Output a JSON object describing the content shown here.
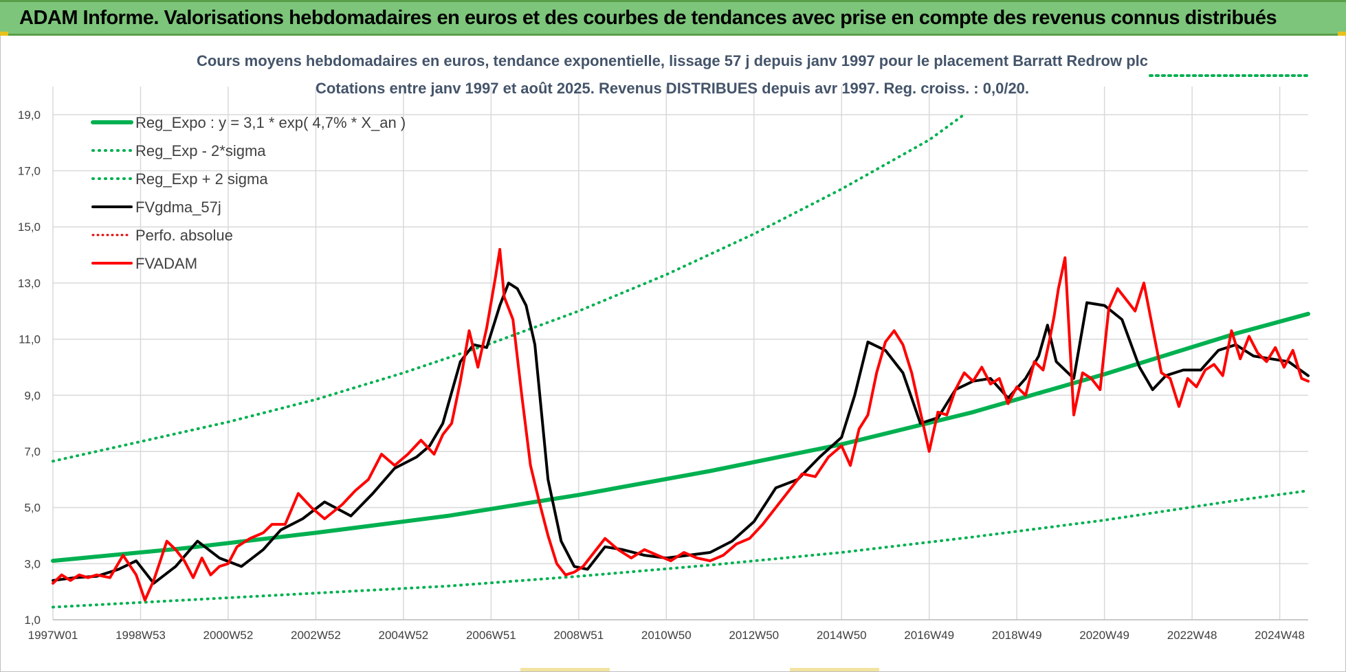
{
  "header": {
    "title": "ADAM Informe. Valorisations hebdomadaires en euros et des courbes de tendances avec prise en compte des revenus connus distribués",
    "background": "#7cc57a"
  },
  "chart_data": {
    "type": "line",
    "title": "Cours moyens hebdomadaires en euros, tendance exponentielle, lissage 57 j depuis janv 1997 pour le placement Barratt Redrow plc",
    "subtitle": "Cotations entre janv 1997 et août 2025. Revenus DISTRIBUES depuis avr 1997. Reg. croiss. : 0,0/20.",
    "xlabel": "",
    "ylabel": "",
    "x_unit": "year (decimal)",
    "xlim": [
      1997.0,
      2025.65
    ],
    "ylim": [
      1.0,
      20.0
    ],
    "grid": true,
    "legend_position": "top-left",
    "x_ticks": [
      {
        "x": 1997.0,
        "label": "1997W01"
      },
      {
        "x": 1999.0,
        "label": "1998W53"
      },
      {
        "x": 2001.0,
        "label": "2000W52"
      },
      {
        "x": 2003.0,
        "label": "2002W52"
      },
      {
        "x": 2005.0,
        "label": "2004W52"
      },
      {
        "x": 2007.0,
        "label": "2006W51"
      },
      {
        "x": 2009.0,
        "label": "2008W51"
      },
      {
        "x": 2011.0,
        "label": "2010W50"
      },
      {
        "x": 2013.0,
        "label": "2012W50"
      },
      {
        "x": 2015.0,
        "label": "2014W50"
      },
      {
        "x": 2017.0,
        "label": "2016W49"
      },
      {
        "x": 2019.0,
        "label": "2018W49"
      },
      {
        "x": 2021.0,
        "label": "2020W49"
      },
      {
        "x": 2023.0,
        "label": "2022W48"
      },
      {
        "x": 2025.0,
        "label": "2024W48"
      }
    ],
    "y_ticks": [
      {
        "y": 1,
        "label": "1,0"
      },
      {
        "y": 3,
        "label": "3,0"
      },
      {
        "y": 5,
        "label": "5,0"
      },
      {
        "y": 7,
        "label": "7,0"
      },
      {
        "y": 9,
        "label": "9,0"
      },
      {
        "y": 11,
        "label": "11,0"
      },
      {
        "y": 13,
        "label": "13,0"
      },
      {
        "y": 15,
        "label": "15,0"
      },
      {
        "y": 17,
        "label": "17,0"
      },
      {
        "y": 19,
        "label": "19,0"
      }
    ],
    "series": [
      {
        "name": "Reg_Expo : y = 3,1 * exp( 4,7% *  X_an )",
        "color": "#00b050",
        "style": "solid",
        "width": 6,
        "x": [
          1997.0,
          2000.0,
          2003.0,
          2006.0,
          2009.0,
          2012.0,
          2015.0,
          2018.0,
          2021.0,
          2024.0,
          2025.65
        ],
        "y": [
          3.1,
          3.55,
          4.1,
          4.7,
          5.45,
          6.3,
          7.25,
          8.4,
          9.75,
          11.2,
          11.9
        ]
      },
      {
        "name": "Reg_Exp - 2*sigma",
        "color": "#00b050",
        "style": "dotted",
        "width": 4,
        "x": [
          1997.0,
          2000.0,
          2003.0,
          2006.0,
          2009.0,
          2012.0,
          2015.0,
          2018.0,
          2021.0,
          2024.0,
          2025.65
        ],
        "y": [
          1.45,
          1.7,
          1.95,
          2.2,
          2.55,
          2.95,
          3.4,
          3.95,
          4.55,
          5.25,
          5.6
        ]
      },
      {
        "name": "Reg_Exp + 2 sigma",
        "color": "#00b050",
        "style": "dotted",
        "width": 4,
        "x": [
          1997.0,
          1999.0,
          2001.0,
          2003.0,
          2005.0,
          2007.0,
          2009.0,
          2011.0,
          2013.0,
          2015.0,
          2017.0,
          2017.75
        ],
        "y": [
          6.65,
          7.35,
          8.05,
          8.85,
          9.8,
          10.85,
          12.0,
          13.3,
          14.75,
          16.35,
          18.1,
          18.95
        ]
      },
      {
        "name": "FVgdma_57j",
        "color": "#000000",
        "style": "solid",
        "width": 4,
        "x": [
          1997.0,
          1997.5,
          1998.0,
          1998.5,
          1998.9,
          1999.3,
          1999.8,
          2000.3,
          2000.8,
          2001.3,
          2001.8,
          2002.2,
          2002.7,
          2003.2,
          2003.8,
          2004.3,
          2004.8,
          2005.3,
          2005.6,
          2005.9,
          2006.3,
          2006.6,
          2006.9,
          2007.2,
          2007.4,
          2007.6,
          2007.8,
          2008.0,
          2008.3,
          2008.6,
          2008.9,
          2009.2,
          2009.6,
          2010.0,
          2010.5,
          2011.0,
          2011.5,
          2012.0,
          2012.5,
          2013.0,
          2013.5,
          2014.0,
          2014.5,
          2015.0,
          2015.3,
          2015.6,
          2016.0,
          2016.4,
          2016.8,
          2017.2,
          2017.6,
          2018.0,
          2018.4,
          2018.8,
          2019.2,
          2019.5,
          2019.7,
          2019.9,
          2020.3,
          2020.6,
          2021.0,
          2021.4,
          2021.8,
          2022.1,
          2022.4,
          2022.8,
          2023.2,
          2023.6,
          2024.0,
          2024.4,
          2024.8,
          2025.2,
          2025.65
        ],
        "y": [
          2.4,
          2.5,
          2.55,
          2.8,
          3.1,
          2.3,
          2.9,
          3.8,
          3.2,
          2.9,
          3.5,
          4.2,
          4.6,
          5.2,
          4.7,
          5.5,
          6.4,
          6.8,
          7.2,
          8.0,
          10.2,
          10.8,
          10.7,
          12.2,
          13.0,
          12.8,
          12.2,
          10.8,
          6.0,
          3.8,
          2.9,
          2.8,
          3.6,
          3.5,
          3.3,
          3.2,
          3.3,
          3.4,
          3.8,
          4.5,
          5.7,
          6.0,
          6.8,
          7.5,
          9.0,
          10.9,
          10.6,
          9.8,
          8.0,
          8.2,
          9.2,
          9.5,
          9.6,
          8.9,
          9.6,
          10.4,
          11.5,
          10.2,
          9.6,
          12.3,
          12.2,
          11.7,
          10.0,
          9.2,
          9.7,
          9.9,
          9.9,
          10.6,
          10.8,
          10.4,
          10.3,
          10.2,
          9.7
        ]
      },
      {
        "name": "Perfo. absolue",
        "color": "#e00000",
        "style": "dotted",
        "width": 3,
        "x": [],
        "y": []
      },
      {
        "name": "FVADAM",
        "color": "#ff0000",
        "style": "solid",
        "width": 4,
        "x": [
          1997.0,
          1997.2,
          1997.4,
          1997.6,
          1997.8,
          1998.0,
          1998.3,
          1998.6,
          1998.9,
          1999.1,
          1999.3,
          1999.6,
          1999.8,
          2000.0,
          2000.2,
          2000.4,
          2000.6,
          2000.8,
          2001.0,
          2001.2,
          2001.5,
          2001.8,
          2002.0,
          2002.3,
          2002.6,
          2002.9,
          2003.2,
          2003.6,
          2003.9,
          2004.2,
          2004.5,
          2004.8,
          2005.1,
          2005.4,
          2005.7,
          2005.9,
          2006.1,
          2006.3,
          2006.5,
          2006.7,
          2006.9,
          2007.1,
          2007.2,
          2007.3,
          2007.5,
          2007.7,
          2007.9,
          2008.1,
          2008.3,
          2008.5,
          2008.7,
          2008.9,
          2009.1,
          2009.3,
          2009.6,
          2009.9,
          2010.2,
          2010.5,
          2010.8,
          2011.1,
          2011.4,
          2011.7,
          2012.0,
          2012.3,
          2012.6,
          2012.9,
          2013.2,
          2013.5,
          2013.8,
          2014.1,
          2014.4,
          2014.7,
          2015.0,
          2015.2,
          2015.4,
          2015.6,
          2015.8,
          2016.0,
          2016.2,
          2016.4,
          2016.6,
          2016.8,
          2017.0,
          2017.2,
          2017.4,
          2017.6,
          2017.8,
          2018.0,
          2018.2,
          2018.4,
          2018.6,
          2018.8,
          2019.0,
          2019.2,
          2019.4,
          2019.6,
          2019.75,
          2019.85,
          2019.95,
          2020.1,
          2020.3,
          2020.5,
          2020.7,
          2020.9,
          2021.1,
          2021.3,
          2021.5,
          2021.7,
          2021.9,
          2022.1,
          2022.3,
          2022.5,
          2022.7,
          2022.9,
          2023.1,
          2023.3,
          2023.5,
          2023.7,
          2023.9,
          2024.1,
          2024.3,
          2024.5,
          2024.7,
          2024.9,
          2025.1,
          2025.3,
          2025.5,
          2025.65
        ],
        "y": [
          2.3,
          2.6,
          2.4,
          2.6,
          2.5,
          2.6,
          2.5,
          3.3,
          2.6,
          1.7,
          2.4,
          3.8,
          3.5,
          3.1,
          2.5,
          3.2,
          2.6,
          2.9,
          3.0,
          3.6,
          3.9,
          4.1,
          4.4,
          4.4,
          5.5,
          5.0,
          4.6,
          5.1,
          5.6,
          6.0,
          6.9,
          6.5,
          6.9,
          7.4,
          6.9,
          7.6,
          8.0,
          9.5,
          11.3,
          10.0,
          11.4,
          13.2,
          14.2,
          12.5,
          11.7,
          9.0,
          6.5,
          5.2,
          4.0,
          3.0,
          2.6,
          2.7,
          2.9,
          3.3,
          3.9,
          3.5,
          3.2,
          3.5,
          3.3,
          3.1,
          3.4,
          3.2,
          3.1,
          3.3,
          3.7,
          3.9,
          4.4,
          5.0,
          5.6,
          6.2,
          6.1,
          6.8,
          7.2,
          6.5,
          7.8,
          8.3,
          9.8,
          10.9,
          11.3,
          10.8,
          9.8,
          8.4,
          7.0,
          8.4,
          8.3,
          9.2,
          9.8,
          9.5,
          10.0,
          9.4,
          9.6,
          8.7,
          9.3,
          9.0,
          10.2,
          9.9,
          11.0,
          11.8,
          12.8,
          13.9,
          8.3,
          9.8,
          9.6,
          9.2,
          12.1,
          12.8,
          12.4,
          12.0,
          13.0,
          11.4,
          9.8,
          9.6,
          8.6,
          9.6,
          9.3,
          9.9,
          10.1,
          9.7,
          11.3,
          10.3,
          11.1,
          10.5,
          10.2,
          10.7,
          10.0,
          10.6,
          9.6,
          9.5
        ]
      }
    ]
  }
}
